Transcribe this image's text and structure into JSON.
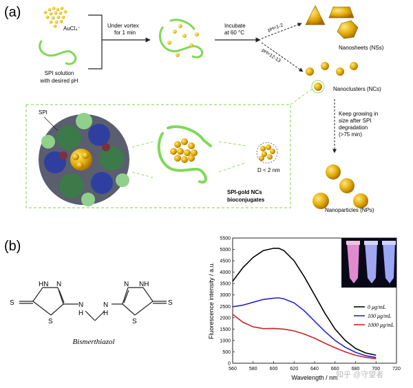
{
  "panel_a": {
    "label": "(a)",
    "aucl4": "AuCl₄⁻",
    "spi_line1": "SPI solution",
    "spi_line2": "with desired pH",
    "vortex_line1": "Under vortex",
    "vortex_line2": "for 1 min",
    "incubate_line1": "Incubate",
    "incubate_line2": "at 60 °C",
    "ph_low": "pH=1-2",
    "ph_high": "pH=12-13",
    "nanosheets": "Nanosheets (NSs)",
    "nanoclusters": "Nanoclusters (NCs)",
    "grow_lines": [
      "Keep growing in",
      "size after SPI",
      "degradation",
      "(>75 min)"
    ],
    "nanoparticles": "Nanoparticles (NPs)",
    "spi_tag": "SPI",
    "size_note": "D < 2 nm",
    "conj_line1": "SPI-gold NCs",
    "conj_line2": "bioconjugates"
  },
  "panel_b": {
    "label": "(b)",
    "molecule_name": "Bismerthiazol",
    "atoms": {
      "s1": "S",
      "s2": "S",
      "s3": "S",
      "s4": "S",
      "hn1": "HN",
      "n1": "N",
      "nh1": "NH",
      "n2": "N",
      "h1": "H",
      "h2": "H",
      "n3": "N",
      "n4": "N"
    },
    "watermark": "知乎 @守望者"
  },
  "chart_data": {
    "type": "line",
    "title": "",
    "xlabel": "Wavelength / nm",
    "ylabel": "Fluorescence intensity / a.u.",
    "xlim": [
      560,
      720
    ],
    "ylim": [
      0,
      5500
    ],
    "xticks": [
      560,
      580,
      600,
      620,
      640,
      660,
      680,
      700,
      720
    ],
    "yticks": [
      0,
      500,
      1000,
      1500,
      2000,
      2500,
      3000,
      3500,
      4000,
      4500,
      5000,
      5500
    ],
    "legend_position": "middle-right",
    "series": [
      {
        "name": "0 μg/mL",
        "color": "#000000",
        "x": [
          560,
          570,
          580,
          590,
          600,
          605,
          610,
          620,
          630,
          640,
          650,
          660,
          670,
          680,
          690,
          700
        ],
        "y": [
          3600,
          4200,
          4650,
          4950,
          5050,
          5050,
          4950,
          4500,
          3800,
          3000,
          2200,
          1500,
          1000,
          650,
          450,
          350
        ]
      },
      {
        "name": "100 μg/mL",
        "color": "#2222cc",
        "x": [
          560,
          570,
          580,
          590,
          600,
          605,
          610,
          620,
          630,
          640,
          650,
          660,
          670,
          680,
          690,
          700
        ],
        "y": [
          2480,
          2550,
          2680,
          2800,
          2860,
          2870,
          2830,
          2650,
          2300,
          1850,
          1400,
          1000,
          700,
          480,
          330,
          250
        ]
      },
      {
        "name": "1000 μg/mL",
        "color": "#cc2222",
        "x": [
          560,
          570,
          580,
          590,
          600,
          610,
          620,
          630,
          640,
          650,
          660,
          670,
          680,
          690,
          700
        ],
        "y": [
          2150,
          1800,
          1600,
          1520,
          1530,
          1500,
          1420,
          1280,
          1100,
          880,
          680,
          500,
          350,
          260,
          200
        ]
      }
    ]
  }
}
